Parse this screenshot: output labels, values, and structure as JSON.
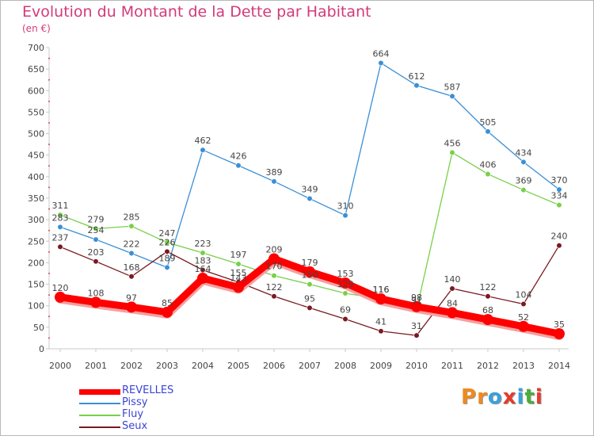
{
  "title": "Evolution du Montant de la Dette par Habitant",
  "subtitle": "(en €)",
  "logo": {
    "text": "Proxiti",
    "colors": [
      "#f08a1c",
      "#f08a1c",
      "#3aa0dd",
      "#e63a2a",
      "#3aa0dd",
      "#4aae3a",
      "#e63a2a"
    ]
  },
  "chart_data": {
    "type": "line",
    "title": "Evolution du Montant de la Dette par Habitant",
    "subtitle": "(en €)",
    "x": [
      "2000",
      "2001",
      "2002",
      "2003",
      "2004",
      "2005",
      "2006",
      "2007",
      "2008",
      "2009",
      "2010",
      "2011",
      "2012",
      "2013",
      "2014"
    ],
    "ylim": [
      0,
      700
    ],
    "yticks": [
      0,
      50,
      100,
      150,
      200,
      250,
      300,
      350,
      400,
      450,
      500,
      550,
      600,
      650,
      700
    ],
    "grid": false,
    "legend_position": "bottom-left",
    "series": [
      {
        "name": "REVELLES",
        "color": "#ff0000",
        "highlight": true,
        "values": [
          120,
          108,
          97,
          85,
          164,
          143,
          209,
          179,
          153,
          116,
          98,
          84,
          68,
          52,
          35
        ]
      },
      {
        "name": "Pissy",
        "color": "#3a8fd6",
        "highlight": false,
        "values": [
          283,
          254,
          222,
          189,
          462,
          426,
          389,
          349,
          310,
          664,
          612,
          587,
          505,
          434,
          370
        ]
      },
      {
        "name": "Fluy",
        "color": "#78d04a",
        "highlight": false,
        "values": [
          311,
          279,
          285,
          247,
          223,
          197,
          170,
          150,
          129,
          116,
          91,
          456,
          406,
          369,
          334
        ]
      },
      {
        "name": "Seux",
        "color": "#7a1a20",
        "highlight": false,
        "values": [
          237,
          203,
          168,
          226,
          183,
          155,
          122,
          95,
          69,
          41,
          31,
          140,
          122,
          104,
          240
        ]
      }
    ]
  }
}
